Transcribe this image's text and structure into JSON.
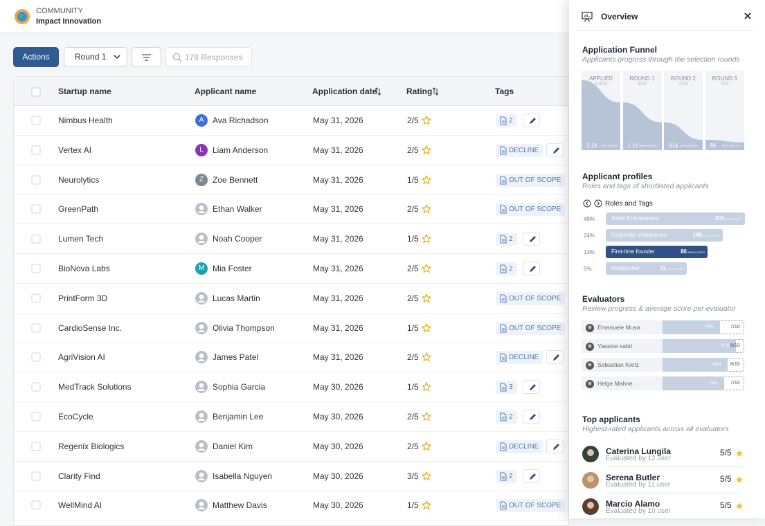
{
  "header": {
    "community": "COMMUNITY",
    "name": "Impact Innovation"
  },
  "toolbar": {
    "actions": "Actions",
    "round": "Round 1",
    "search": "178 Responses"
  },
  "table": {
    "columns": [
      "Startup name",
      "Applicant name",
      "Application date",
      "Rating",
      "Tags"
    ],
    "rows": [
      {
        "startup": "Nimbus Health",
        "applicant": "Ava Richadson",
        "initial": "A",
        "avatar_color": "#3d6fd6",
        "date": "May 31, 2026",
        "rating": "2/5",
        "tag": "2"
      },
      {
        "startup": "Vertex AI",
        "applicant": "Liam Anderson",
        "initial": "L",
        "avatar_color": "#8a35b8",
        "date": "May 31, 2026",
        "rating": "2/5",
        "tag": "DECLINE"
      },
      {
        "startup": "Neurolytics",
        "applicant": "Zoe Bennett",
        "initial": "Z",
        "avatar_color": "#7d8791",
        "date": "May 31, 2026",
        "rating": "1/5",
        "tag": "OUT OF SCOPE"
      },
      {
        "startup": "GreenPath",
        "applicant": "Ethan Walker",
        "date": "May 31, 2026",
        "rating": "2/5",
        "tag": "OUT OF SCOPE"
      },
      {
        "startup": "Lumen Tech",
        "applicant": "Noah Cooper",
        "date": "May 31, 2026",
        "rating": "1/5",
        "tag": "2"
      },
      {
        "startup": "BioNova Labs",
        "applicant": "Mia Foster",
        "initial": "M",
        "avatar_color": "#1aa3ad",
        "date": "May 31, 2026",
        "rating": "2/5",
        "tag": "2"
      },
      {
        "startup": "PrintForm 3D",
        "applicant": "Lucas Martin",
        "date": "May 31, 2026",
        "rating": "2/5",
        "tag": "OUT OF SCOPE"
      },
      {
        "startup": "CardioSense Inc.",
        "applicant": "Olivia Thompson",
        "date": "May 31, 2026",
        "rating": "1/5",
        "tag": "OUT OF SCOPE"
      },
      {
        "startup": "AgriVision AI",
        "applicant": "James Patel",
        "date": "May 31, 2026",
        "rating": "2/5",
        "tag": "DECLINE"
      },
      {
        "startup": "MedTrack Solutions",
        "applicant": "Sophia Garcia",
        "date": "May 30, 2026",
        "rating": "1/5",
        "tag": "3"
      },
      {
        "startup": "EcoCycle",
        "applicant": "Benjamin Lee",
        "date": "May 30, 2026",
        "rating": "2/5",
        "tag": "2"
      },
      {
        "startup": "Regenix Biologics",
        "applicant": "Daniel Kim",
        "date": "May 30, 2026",
        "rating": "2/5",
        "tag": "DECLINE"
      },
      {
        "startup": "Clarity Find",
        "applicant": "Isabella Nguyen",
        "date": "May 30, 2026",
        "rating": "3/5",
        "tag": "2"
      },
      {
        "startup": "WellMind AI",
        "applicant": "Matthew Davis",
        "date": "May 30, 2026",
        "rating": "1/5",
        "tag": "OUT OF SCOPE"
      }
    ]
  },
  "overview": {
    "title": "Overview",
    "funnel": {
      "title": "Application Funnel",
      "subtitle": "Applicants progress through the selection rounds",
      "stages": [
        {
          "name": "APPLIED",
          "pct": "100%",
          "count": "3,1K",
          "unit": "applicants"
        },
        {
          "name": "ROUND 1",
          "pct": "34%",
          "count": "1.1K",
          "unit": "applicants"
        },
        {
          "name": "ROUND 2",
          "pct": "13%",
          "count": "414",
          "unit": "applicants"
        },
        {
          "name": "ROUND 3",
          "pct": "3%",
          "count": "96",
          "unit": "applicants"
        }
      ]
    },
    "profiles": {
      "title": "Applicant profiles",
      "subtitle": "Roles and tags of shortlisted applicants",
      "heading": "Roles and Tags",
      "items": [
        {
          "pct": "49%",
          "label": "Serial Entrepreneur",
          "count": "304",
          "unit": "applicants"
        },
        {
          "pct": "24%",
          "label": "Corporate intrapreneur",
          "count": "149",
          "unit": "applicants"
        },
        {
          "pct": "13%",
          "label": "First-time founder",
          "count": "80",
          "unit": "applicants"
        },
        {
          "pct": "5%",
          "label": "Researcher",
          "count": "31",
          "unit": "applicants"
        }
      ]
    },
    "evaluators": {
      "title": "Evaluators",
      "subtitle": "Review progress & average score per evaluator",
      "items": [
        {
          "name": "Emanuele Musa",
          "progress": "70%",
          "score": "7/10"
        },
        {
          "name": "Yassine sabri",
          "progress": "90%",
          "score": "8/10"
        },
        {
          "name": "Sebastian Kretz",
          "progress": "80%",
          "score": "8/10"
        },
        {
          "name": "Helge Mahne",
          "progress": "75%",
          "score": "7/10"
        }
      ]
    },
    "top": {
      "title": "Top applicants",
      "subtitle": "Highest-rated applicants across all evaluators",
      "items": [
        {
          "name": "Caterina Lungila",
          "sub": "Evaluated by 12 user",
          "score": "5/5"
        },
        {
          "name": "Serena Butler",
          "sub": "Evaluated by 11 user",
          "score": "5/5"
        },
        {
          "name": "Marcio Alamo",
          "sub": "Evaluated by 10 user",
          "score": "5/5"
        }
      ]
    }
  }
}
